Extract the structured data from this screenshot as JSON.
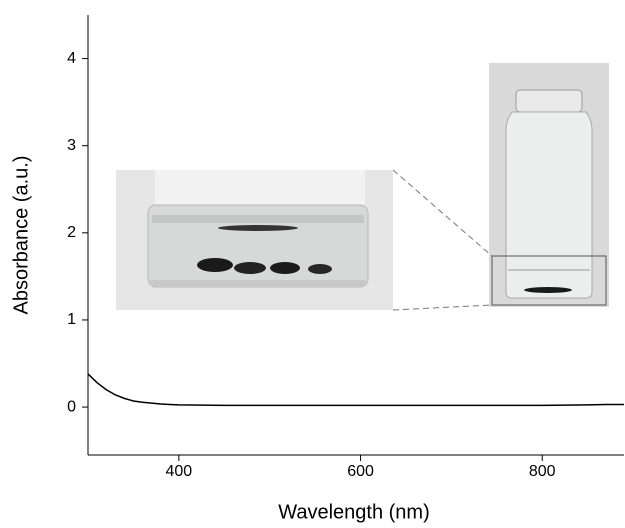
{
  "chart_data": {
    "type": "line",
    "xlabel": "Wavelength (nm)",
    "ylabel": "Absorbance (a.u.)",
    "x": [
      300,
      310,
      320,
      330,
      340,
      350,
      360,
      370,
      380,
      390,
      400,
      450,
      500,
      550,
      600,
      650,
      700,
      750,
      800,
      850,
      870,
      890
    ],
    "values": [
      0.38,
      0.28,
      0.2,
      0.14,
      0.1,
      0.07,
      0.055,
      0.045,
      0.035,
      0.03,
      0.025,
      0.02,
      0.02,
      0.02,
      0.02,
      0.02,
      0.02,
      0.02,
      0.02,
      0.025,
      0.03,
      0.03
    ],
    "color": "#000000",
    "xlim": [
      300,
      890
    ],
    "ylim": [
      -0.55,
      4.5
    ],
    "xticks": [
      400,
      600,
      800
    ],
    "yticks": [
      0,
      1,
      2,
      3,
      4
    ],
    "grid": false
  }
}
